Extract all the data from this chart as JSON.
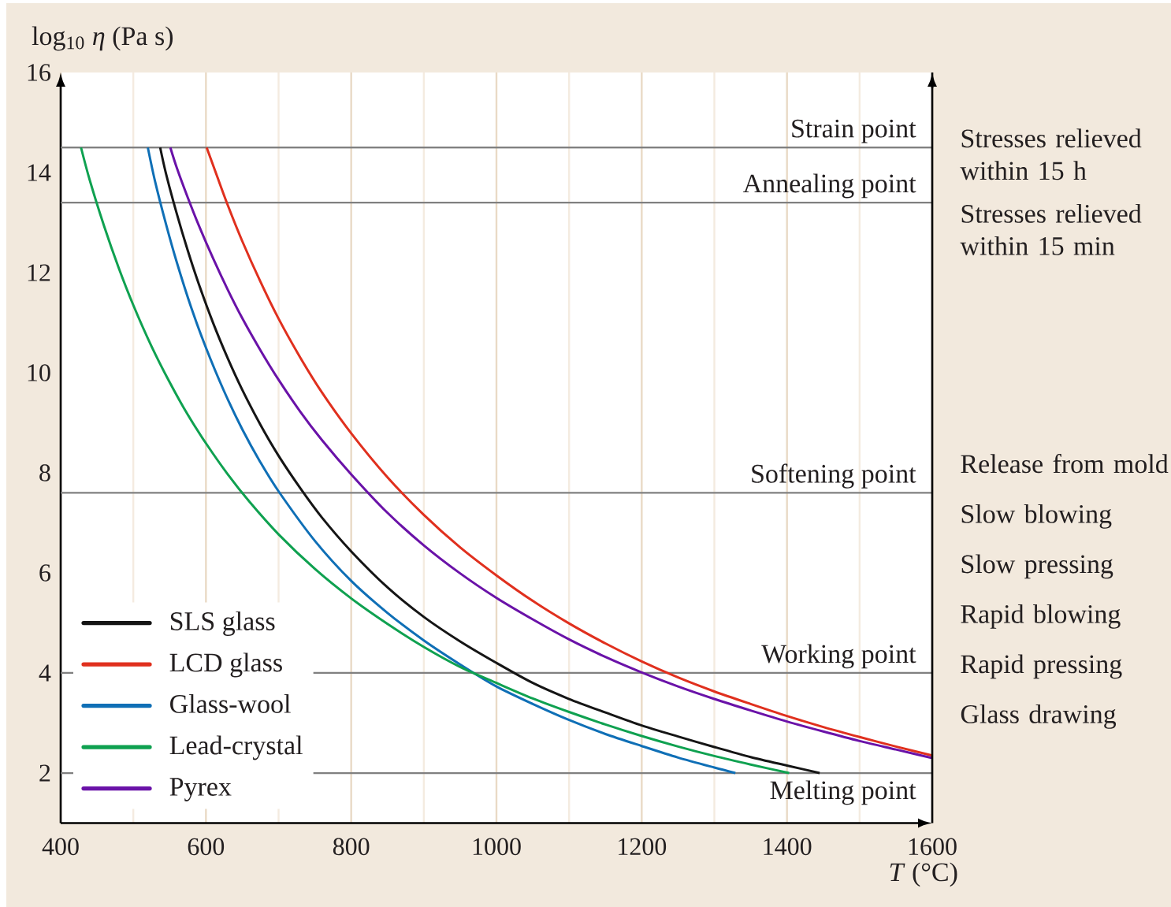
{
  "chart_data": {
    "type": "line",
    "xlabel": "*T* (°C)",
    "ylabel": "log$_{10}$ *η* (Pa s)",
    "xlim": [
      400,
      1600
    ],
    "ylim": [
      1,
      16
    ],
    "xticks": [
      400,
      {
        "value": 500,
        "label": null
      },
      600,
      {
        "value": 700,
        "label": null
      },
      800,
      {
        "value": 900,
        "label": null
      },
      1000,
      {
        "value": 1100,
        "label": null
      },
      1200,
      {
        "value": 1300,
        "label": null
      },
      1400,
      {
        "value": 1500,
        "label": null
      },
      1600
    ],
    "yticks": [
      2,
      4,
      6,
      8,
      10,
      12,
      14,
      16
    ],
    "grid": "x",
    "legend": "bottom left",
    "line_style": "solid",
    "series": [
      {
        "name": "SLS glass",
        "color": "#151515",
        "x": [
          537,
          545,
          560,
          575,
          590,
          610,
          630,
          650,
          675,
          700,
          730,
          760,
          800,
          850,
          900,
          950,
          1000,
          1050,
          1100,
          1150,
          1200,
          1250,
          1300,
          1350,
          1400,
          1445
        ],
        "values": [
          14.5,
          13.98,
          13.17,
          12.44,
          11.78,
          10.99,
          10.29,
          9.66,
          8.96,
          8.34,
          7.69,
          7.1,
          6.43,
          5.71,
          5.12,
          4.63,
          4.2,
          3.8,
          3.48,
          3.21,
          2.95,
          2.73,
          2.52,
          2.32,
          2.15,
          2.0
        ]
      },
      {
        "name": "LCD glass",
        "color": "#e0301e",
        "x": [
          601,
          615,
          630,
          650,
          675,
          700,
          730,
          760,
          800,
          850,
          900,
          950,
          1000,
          1050,
          1100,
          1150,
          1200,
          1250,
          1300,
          1350,
          1400,
          1450,
          1500,
          1550,
          1600
        ],
        "values": [
          14.5,
          13.94,
          13.35,
          12.63,
          11.82,
          11.08,
          10.3,
          9.6,
          8.79,
          7.91,
          7.16,
          6.51,
          5.95,
          5.44,
          4.99,
          4.59,
          4.23,
          3.91,
          3.63,
          3.38,
          3.14,
          2.92,
          2.72,
          2.53,
          2.35
        ]
      },
      {
        "name": "Glass-wool",
        "color": "#0f6fb6",
        "x": [
          520,
          530,
          545,
          560,
          580,
          600,
          625,
          650,
          675,
          700,
          750,
          800,
          850,
          900,
          950,
          1000,
          1050,
          1100,
          1150,
          1200,
          1250,
          1300,
          1329
        ],
        "values": [
          14.5,
          13.82,
          12.97,
          12.2,
          11.29,
          10.5,
          9.63,
          8.87,
          8.21,
          7.63,
          6.64,
          5.84,
          5.2,
          4.65,
          4.17,
          3.73,
          3.38,
          3.06,
          2.78,
          2.54,
          2.31,
          2.11,
          2.0
        ]
      },
      {
        "name": "Lead-crystal",
        "color": "#0fa150",
        "x": [
          428,
          440,
          460,
          480,
          500,
          525,
          550,
          575,
          600,
          630,
          660,
          700,
          750,
          800,
          850,
          900,
          950,
          1000,
          1050,
          1100,
          1150,
          1200,
          1250,
          1300,
          1350,
          1403
        ],
        "values": [
          14.5,
          13.85,
          12.92,
          12.09,
          11.35,
          10.53,
          9.81,
          9.16,
          8.59,
          7.97,
          7.42,
          6.77,
          6.08,
          5.49,
          4.98,
          4.52,
          4.12,
          3.8,
          3.49,
          3.22,
          2.97,
          2.74,
          2.53,
          2.34,
          2.17,
          2.0
        ]
      },
      {
        "name": "Pyrex",
        "color": "#6a12a8",
        "x": [
          551,
          560,
          575,
          590,
          610,
          630,
          650,
          675,
          700,
          730,
          760,
          800,
          850,
          900,
          950,
          1000,
          1050,
          1100,
          1150,
          1200,
          1250,
          1300,
          1350,
          1400,
          1450,
          1500,
          1550,
          1600
        ],
        "values": [
          14.5,
          14.09,
          13.5,
          12.95,
          12.28,
          11.66,
          11.09,
          10.45,
          9.86,
          9.22,
          8.65,
          7.97,
          7.2,
          6.55,
          5.99,
          5.5,
          5.07,
          4.67,
          4.32,
          4.01,
          3.73,
          3.48,
          3.25,
          3.03,
          2.83,
          2.64,
          2.47,
          2.3
        ]
      }
    ],
    "ref_lines": [
      {
        "axis": "y",
        "value": 14.5,
        "label": "Strain point",
        "color": "#808080"
      },
      {
        "axis": "y",
        "value": 13.4,
        "label": "Annealing point",
        "color": "#808080"
      },
      {
        "axis": "y",
        "value": 7.6,
        "label": "Softening point",
        "color": "#808080"
      },
      {
        "axis": "y",
        "value": 4,
        "label": "Working point",
        "color": "#808080"
      },
      {
        "axis": "y",
        "value": 2,
        "label": "Melting point",
        "color": "#808080"
      }
    ],
    "annotations": [
      "Stresses relieved within 15 h",
      "Stresses relieved within 15 min",
      "Release from mold",
      "Slow blowing",
      "Slow pressing",
      "Rapid blowing",
      "Rapid pressing",
      "Glass drawing"
    ]
  }
}
